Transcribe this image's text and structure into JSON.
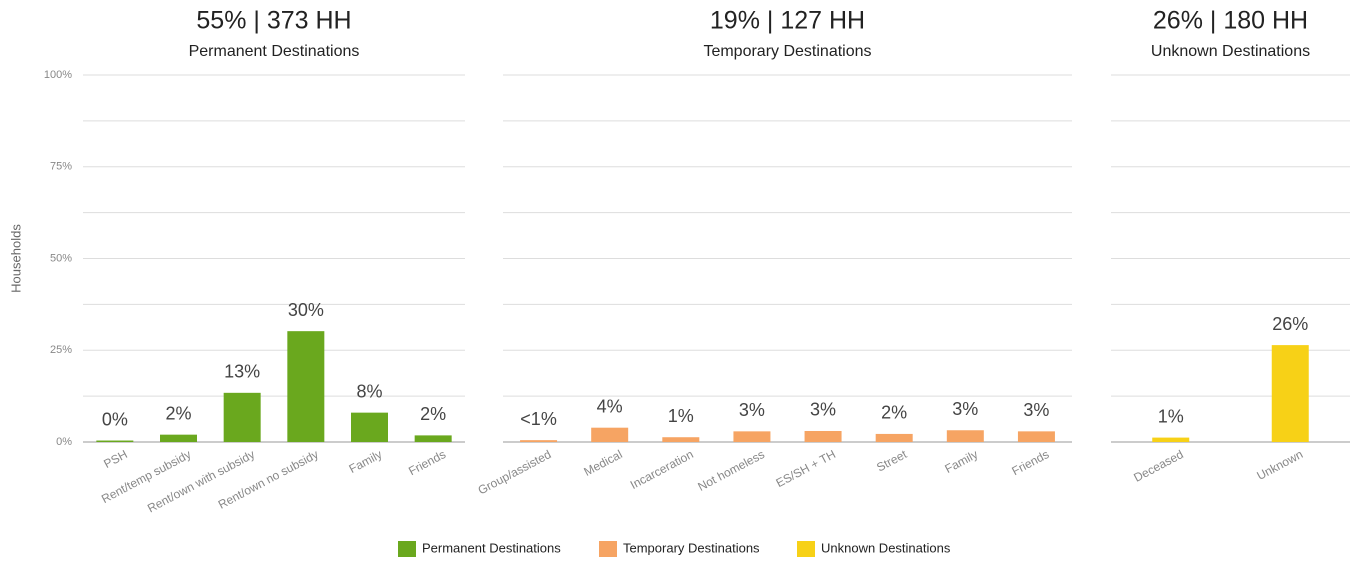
{
  "chart_data": [
    {
      "type": "bar",
      "title": "55% | 373 HH",
      "subtitle": "Permanent Destinations",
      "ylabel": "Households",
      "categories": [
        "PSH",
        "Rent/temp subsidy",
        "Rent/own with subsidy",
        "Rent/own no subsidy",
        "Family",
        "Friends"
      ],
      "series": [
        {
          "name": "Permanent Destinations",
          "color": "#6aa81e",
          "values": [
            0.4,
            2,
            13.4,
            30.2,
            8,
            1.8
          ],
          "value_labels": [
            "0%",
            "2%",
            "13%",
            "30%",
            "8%",
            "2%"
          ]
        }
      ],
      "ylim": [
        0,
        100
      ],
      "yticks": [
        {
          "value": 0,
          "label": "0%"
        },
        {
          "value": 25,
          "label": "25%"
        },
        {
          "value": 50,
          "label": "50%"
        },
        {
          "value": 75,
          "label": "75%"
        },
        {
          "value": 100,
          "label": "100%"
        }
      ],
      "minor_yticks": [
        12.5,
        37.5,
        62.5,
        87.5
      ],
      "grid": true,
      "show_ytick_labels": true
    },
    {
      "type": "bar",
      "title": "19% | 127 HH",
      "subtitle": "Temporary Destinations",
      "categories": [
        "Group/assisted",
        "Medical",
        "Incarceration",
        "Not homeless",
        "ES/SH + TH",
        "Street",
        "Family",
        "Friends"
      ],
      "series": [
        {
          "name": "Temporary Destinations",
          "color": "#f6a463",
          "values": [
            0.5,
            3.9,
            1.3,
            2.9,
            3,
            2.2,
            3.2,
            2.9
          ],
          "value_labels": [
            "<1%",
            "4%",
            "1%",
            "3%",
            "3%",
            "2%",
            "3%",
            "3%"
          ]
        }
      ],
      "ylim": [
        0,
        100
      ],
      "yticks": [
        0,
        12.5,
        25,
        37.5,
        50,
        62.5,
        75,
        87.5,
        100
      ],
      "grid": true,
      "show_ytick_labels": false
    },
    {
      "type": "bar",
      "title": "26% | 180 HH",
      "subtitle": "Unknown Destinations",
      "categories": [
        "Deceased",
        "Unknown"
      ],
      "series": [
        {
          "name": "Unknown Destinations",
          "color": "#f7d117",
          "values": [
            1.2,
            26.4
          ],
          "value_labels": [
            "1%",
            "26%"
          ]
        }
      ],
      "ylim": [
        0,
        100
      ],
      "yticks": [
        0,
        12.5,
        25,
        37.5,
        50,
        62.5,
        75,
        87.5,
        100
      ],
      "grid": true,
      "show_ytick_labels": false
    }
  ]
}
